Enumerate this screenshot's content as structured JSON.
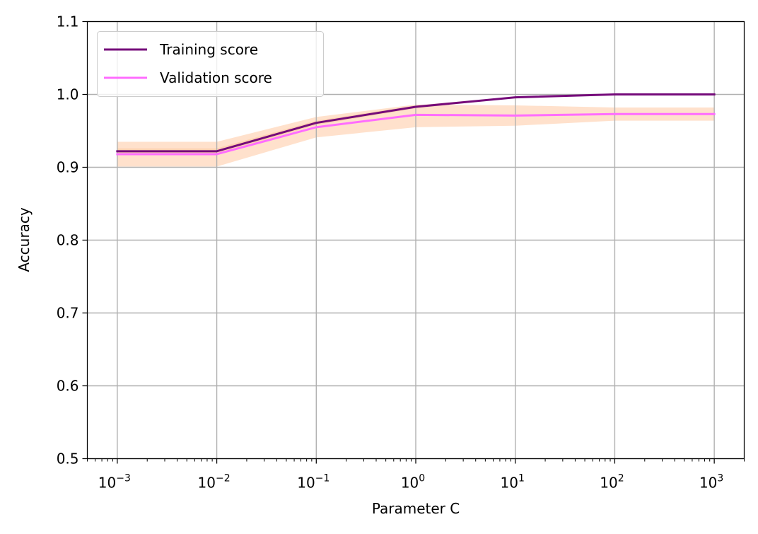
{
  "chart_data": {
    "type": "line",
    "title": "",
    "xlabel": "Parameter C",
    "ylabel": "Accuracy",
    "xscale": "log",
    "x": [
      0.001,
      0.01,
      0.1,
      1,
      10,
      100,
      1000
    ],
    "xlim": [
      0.0005,
      2000
    ],
    "ylim": [
      0.5,
      1.1
    ],
    "x_tick_labels": [
      {
        "value": 0.001,
        "base": "10",
        "exp": "−3"
      },
      {
        "value": 0.01,
        "base": "10",
        "exp": "−2"
      },
      {
        "value": 0.1,
        "base": "10",
        "exp": "−1"
      },
      {
        "value": 1,
        "base": "10",
        "exp": "0"
      },
      {
        "value": 10,
        "base": "10",
        "exp": "1"
      },
      {
        "value": 100,
        "base": "10",
        "exp": "2"
      },
      {
        "value": 1000,
        "base": "10",
        "exp": "3"
      }
    ],
    "y_ticks": [
      0.5,
      0.6,
      0.7,
      0.8,
      0.9,
      1.0,
      1.1
    ],
    "y_tick_labels": [
      "0.5",
      "0.6",
      "0.7",
      "0.8",
      "0.9",
      "1.0",
      "1.1"
    ],
    "grid": true,
    "legend_position": "top-left",
    "series": [
      {
        "name": "Training score",
        "color": "#750a7a",
        "values": [
          0.922,
          0.922,
          0.961,
          0.983,
          0.996,
          1.0,
          1.0
        ],
        "band_lower": [
          0.918,
          0.918,
          0.958,
          0.981,
          0.995,
          1.0,
          1.0
        ],
        "band_upper": [
          0.926,
          0.926,
          0.964,
          0.985,
          0.997,
          1.0,
          1.0
        ],
        "band_color": "#ff9f5a"
      },
      {
        "name": "Validation score",
        "color": "#ff6dff",
        "values": [
          0.918,
          0.918,
          0.955,
          0.972,
          0.971,
          0.973,
          0.973
        ],
        "band_lower": [
          0.901,
          0.901,
          0.941,
          0.955,
          0.957,
          0.964,
          0.964
        ],
        "band_upper": [
          0.935,
          0.935,
          0.969,
          0.986,
          0.985,
          0.982,
          0.982
        ],
        "band_color": "#ffc9a3"
      }
    ]
  }
}
